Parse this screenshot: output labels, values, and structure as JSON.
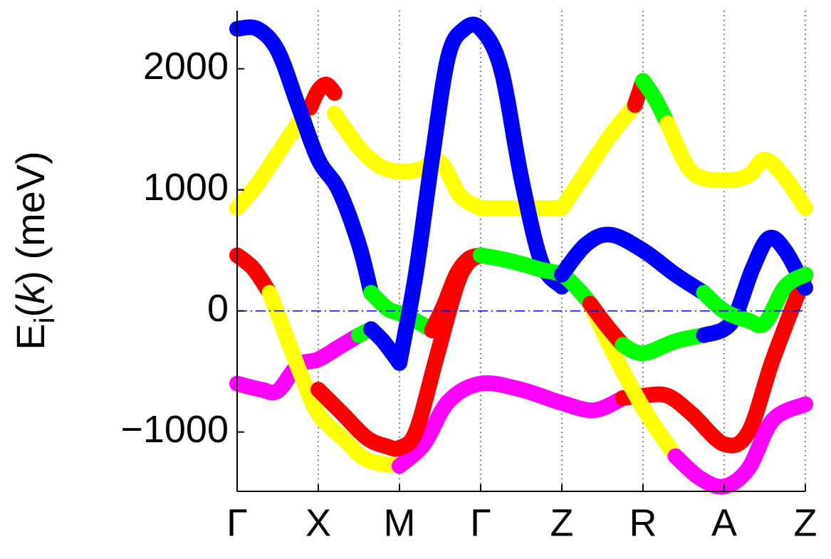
{
  "chart_data": {
    "type": "line",
    "ylabel": [
      "E",
      "i",
      "(",
      "k",
      ") (meV)"
    ],
    "xlim": [
      0,
      7
    ],
    "ylim": [
      -1490,
      2480
    ],
    "xticks": [
      {
        "value": 0,
        "label": "Γ"
      },
      {
        "value": 1,
        "label": "X"
      },
      {
        "value": 2,
        "label": "M"
      },
      {
        "value": 3,
        "label": "Γ"
      },
      {
        "value": 4,
        "label": "Z"
      },
      {
        "value": 5,
        "label": "R"
      },
      {
        "value": 6,
        "label": "A"
      },
      {
        "value": 7,
        "label": "Z"
      }
    ],
    "yticks": [
      {
        "value": -1000,
        "label": "−1000"
      },
      0,
      1000,
      2000
    ],
    "grid": "x",
    "hline": {
      "value": 0,
      "color": "#0000cc"
    },
    "series": [
      {
        "color": "#ffff00",
        "x": [
          0,
          0.25,
          0.5,
          0.75,
          0.9
        ],
        "values": [
          850,
          1050,
          1300,
          1550,
          1680
        ]
      },
      {
        "color": "#ff0000",
        "x": [
          0.9,
          1,
          1.1,
          1.2
        ],
        "values": [
          1680,
          1820,
          1870,
          1800
        ]
      },
      {
        "color": "#ffff00",
        "x": [
          1.2,
          1.5,
          1.75,
          2,
          2.25,
          2.5,
          2.75,
          3
        ],
        "values": [
          1630,
          1350,
          1200,
          1150,
          1170,
          1230,
          950,
          850
        ]
      },
      {
        "color": "#ffff00",
        "x": [
          3,
          3.5,
          4
        ],
        "values": [
          850,
          850,
          850
        ]
      },
      {
        "color": "#ffff00",
        "x": [
          4,
          4.3,
          4.6,
          4.9
        ],
        "values": [
          850,
          1150,
          1450,
          1700
        ]
      },
      {
        "color": "#ff0000",
        "x": [
          4.9,
          5
        ],
        "values": [
          1700,
          1900
        ]
      },
      {
        "color": "#00ff00",
        "x": [
          5,
          5.15,
          5.3
        ],
        "values": [
          1900,
          1750,
          1550
        ]
      },
      {
        "color": "#ffff00",
        "x": [
          5.3,
          5.6,
          6,
          6.3,
          6.5,
          6.75,
          7
        ],
        "values": [
          1550,
          1150,
          1080,
          1120,
          1250,
          1100,
          850
        ]
      },
      {
        "color": "#ff00ff",
        "x": [
          0,
          0.3,
          0.5,
          0.75,
          1,
          1.25,
          1.5
        ],
        "values": [
          -600,
          -650,
          -660,
          -450,
          -400,
          -300,
          -200
        ]
      },
      {
        "color": "#00ff00",
        "x": [
          1.5,
          1.65
        ],
        "values": [
          -200,
          -150
        ]
      },
      {
        "color": "#0000ff",
        "x": [
          1.65,
          1.8,
          2
        ],
        "values": [
          -150,
          -250,
          -430
        ]
      },
      {
        "color": "#ff0000",
        "x": [
          0,
          0.2,
          0.4
        ],
        "values": [
          460,
          350,
          150
        ]
      },
      {
        "color": "#ffff00",
        "x": [
          0.4,
          0.6,
          0.8,
          1,
          1.3,
          1.6,
          2
        ],
        "values": [
          150,
          -200,
          -550,
          -850,
          -1050,
          -1230,
          -1280
        ]
      },
      {
        "color": "#ff00ff",
        "x": [
          2,
          2.3,
          2.6,
          3,
          3.5,
          4,
          4.4,
          4.75
        ],
        "values": [
          -1280,
          -1100,
          -750,
          -600,
          -650,
          -760,
          -820,
          -720
        ]
      },
      {
        "color": "#ff0000",
        "x": [
          4.75,
          5,
          5.3,
          5.6,
          6,
          6.3,
          6.6,
          7
        ],
        "values": [
          -720,
          -700,
          -700,
          -850,
          -1100,
          -1000,
          -400,
          300
        ]
      },
      {
        "color": "#ffff00",
        "x": [
          4.35,
          4.6,
          5,
          5.4
        ],
        "values": [
          60,
          -300,
          -800,
          -1200
        ]
      },
      {
        "color": "#ff00ff",
        "x": [
          5.4,
          5.7,
          6,
          6.3,
          6.6,
          7
        ],
        "values": [
          -1200,
          -1380,
          -1450,
          -1300,
          -900,
          -770
        ]
      },
      {
        "color": "#ff0000",
        "x": [
          1,
          1.3,
          1.6,
          1.85,
          2,
          2.2,
          2.45,
          2.7,
          2.85,
          3
        ],
        "values": [
          -650,
          -850,
          -1050,
          -1120,
          -1130,
          -1000,
          -400,
          200,
          400,
          460
        ]
      },
      {
        "color": "#0000ff",
        "x": [
          0,
          0.25,
          0.5,
          0.75,
          1,
          1.25,
          1.5,
          1.65
        ],
        "values": [
          2330,
          2330,
          2150,
          1700,
          1250,
          1000,
          550,
          150
        ]
      },
      {
        "color": "#00ff00",
        "x": [
          1.65,
          1.85,
          2,
          2.2,
          2.4
        ],
        "values": [
          150,
          20,
          -20,
          -80,
          -160
        ]
      },
      {
        "color": "#ff0000",
        "x": [
          2.4,
          2.55,
          2.7,
          2.85,
          3
        ],
        "values": [
          -160,
          50,
          300,
          430,
          460
        ]
      },
      {
        "color": "#0000ff",
        "x": [
          2,
          2.2,
          2.4,
          2.6,
          2.8,
          3,
          3.25,
          3.5,
          3.75,
          4
        ],
        "values": [
          -430,
          300,
          1250,
          2100,
          2330,
          2330,
          2000,
          1100,
          400,
          200
        ]
      },
      {
        "color": "#00ff00",
        "x": [
          3,
          3.25,
          3.5,
          3.75,
          4,
          4.2,
          4.35
        ],
        "values": [
          460,
          430,
          390,
          340,
          300,
          180,
          60
        ]
      },
      {
        "color": "#ff0000",
        "x": [
          4.35,
          4.55,
          4.75
        ],
        "values": [
          60,
          -120,
          -280
        ]
      },
      {
        "color": "#00ff00",
        "x": [
          4.75,
          5,
          5.4,
          5.75
        ],
        "values": [
          -280,
          -350,
          -250,
          -200
        ]
      },
      {
        "color": "#0000ff",
        "x": [
          5.75,
          6,
          6.15,
          6.35,
          6.55,
          6.75,
          7
        ],
        "values": [
          -200,
          -150,
          -20,
          350,
          600,
          500,
          190
        ]
      },
      {
        "color": "#0000ff",
        "x": [
          4,
          4.3,
          4.6,
          5,
          5.4,
          5.75
        ],
        "values": [
          300,
          550,
          630,
          500,
          300,
          150
        ]
      },
      {
        "color": "#00ff00",
        "x": [
          5.75,
          6,
          6.3,
          6.5,
          6.75,
          7
        ],
        "values": [
          150,
          0,
          -80,
          -100,
          200,
          300
        ]
      }
    ]
  }
}
